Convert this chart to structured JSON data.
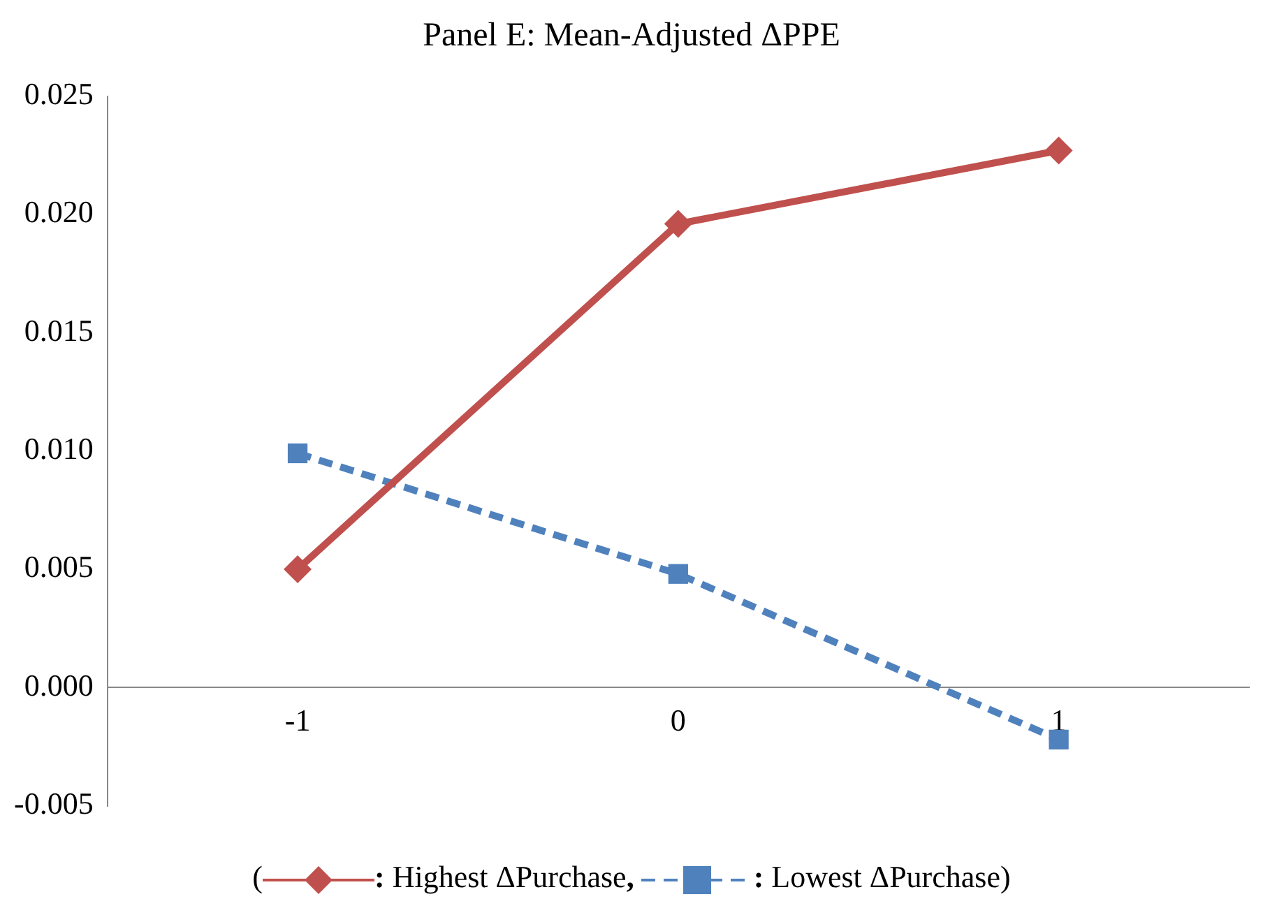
{
  "chart_data": {
    "type": "line",
    "title": "Panel E: Mean-Adjusted ΔPPE",
    "categories": [
      "-1",
      "0",
      "1"
    ],
    "series": [
      {
        "name": "Highest ΔPurchase",
        "color": "#c0504d",
        "values": [
          0.005,
          0.0196,
          0.0227
        ],
        "marker": "diamond",
        "line_style": "solid"
      },
      {
        "name": "Lowest ΔPurchase",
        "color": "#4f81bd",
        "values": [
          0.0099,
          0.0048,
          -0.0022
        ],
        "marker": "square",
        "line_style": "dashed"
      }
    ],
    "ylim": [
      -0.005,
      0.025
    ],
    "yticks": [
      {
        "value": -0.005,
        "label": "-0.005"
      },
      {
        "value": 0,
        "label": "0.000"
      },
      {
        "value": 0.005,
        "label": "0.005"
      },
      {
        "value": 0.01,
        "label": "0.010"
      },
      {
        "value": 0.015,
        "label": "0.015"
      },
      {
        "value": 0.02,
        "label": "0.020"
      },
      {
        "value": 0.025,
        "label": "0.025"
      }
    ],
    "grid": false,
    "legend": "bottom",
    "annotations": [
      "(",
      ":",
      ",",
      ":",
      ")"
    ]
  }
}
